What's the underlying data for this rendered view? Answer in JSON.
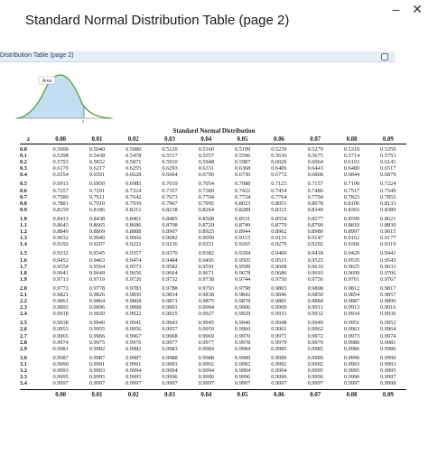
{
  "window": {
    "title": "Standard Normal Distribution Table (page 2)",
    "tab_label": "Distribution Table (page 2)",
    "minimize_glyph": "–",
    "close_glyph": "✕"
  },
  "curve": {
    "area_label": "Area",
    "z_label": "z"
  },
  "table": {
    "title": "Standard Normal Distribution",
    "z_header": "z",
    "columns": [
      "0.00",
      "0.01",
      "0.02",
      "0.03",
      "0.04",
      "0.05",
      "0.06",
      "0.07",
      "0.08",
      "0.09"
    ],
    "blocks": [
      {
        "rows": [
          {
            "z": "0.0",
            "v": [
              "0.5000",
              "0.5040",
              "0.5080",
              "0.5120",
              "0.5160",
              "0.5199",
              "0.5239",
              "0.5279",
              "0.5319",
              "0.5359"
            ]
          },
          {
            "z": "0.1",
            "v": [
              "0.5398",
              "0.5438",
              "0.5478",
              "0.5517",
              "0.5557",
              "0.5596",
              "0.5636",
              "0.5675",
              "0.5714",
              "0.5753"
            ]
          },
          {
            "z": "0.2",
            "v": [
              "0.5793",
              "0.5832",
              "0.5871",
              "0.5910",
              "0.5948",
              "0.5987",
              "0.6026",
              "0.6064",
              "0.6103",
              "0.6141"
            ]
          },
          {
            "z": "0.3",
            "v": [
              "0.6179",
              "0.6217",
              "0.6255",
              "0.6293",
              "0.6331",
              "0.6368",
              "0.6406",
              "0.6443",
              "0.6480",
              "0.6517"
            ]
          },
          {
            "z": "0.4",
            "v": [
              "0.6554",
              "0.6591",
              "0.6628",
              "0.6664",
              "0.6700",
              "0.6736",
              "0.6772",
              "0.6808",
              "0.6844",
              "0.6879"
            ]
          }
        ]
      },
      {
        "rows": [
          {
            "z": "0.5",
            "v": [
              "0.6915",
              "0.6950",
              "0.6985",
              "0.7019",
              "0.7054",
              "0.7088",
              "0.7123",
              "0.7157",
              "0.7190",
              "0.7224"
            ]
          },
          {
            "z": "0.6",
            "v": [
              "0.7257",
              "0.7291",
              "0.7324",
              "0.7357",
              "0.7389",
              "0.7422",
              "0.7454",
              "0.7486",
              "0.7517",
              "0.7549"
            ]
          },
          {
            "z": "0.7",
            "v": [
              "0.7580",
              "0.7611",
              "0.7642",
              "0.7673",
              "0.7704",
              "0.7734",
              "0.7764",
              "0.7794",
              "0.7823",
              "0.7852"
            ]
          },
          {
            "z": "0.8",
            "v": [
              "0.7881",
              "0.7910",
              "0.7939",
              "0.7967",
              "0.7995",
              "0.8023",
              "0.8051",
              "0.8078",
              "0.8106",
              "0.8133"
            ]
          },
          {
            "z": "0.9",
            "v": [
              "0.8159",
              "0.8186",
              "0.8212",
              "0.8238",
              "0.8264",
              "0.8289",
              "0.8315",
              "0.8340",
              "0.8365",
              "0.8389"
            ]
          }
        ]
      },
      {
        "rows": [
          {
            "z": "1.0",
            "v": [
              "0.8413",
              "0.8438",
              "0.8461",
              "0.8485",
              "0.8508",
              "0.8531",
              "0.8554",
              "0.8577",
              "0.8599",
              "0.8621"
            ]
          },
          {
            "z": "1.1",
            "v": [
              "0.8643",
              "0.8665",
              "0.8686",
              "0.8708",
              "0.8729",
              "0.8749",
              "0.8770",
              "0.8790",
              "0.8810",
              "0.8830"
            ]
          },
          {
            "z": "1.2",
            "v": [
              "0.8849",
              "0.8869",
              "0.8888",
              "0.8907",
              "0.8925",
              "0.8944",
              "0.8962",
              "0.8980",
              "0.8997",
              "0.9015"
            ]
          },
          {
            "z": "1.3",
            "v": [
              "0.9032",
              "0.9049",
              "0.9066",
              "0.9082",
              "0.9099",
              "0.9115",
              "0.9131",
              "0.9147",
              "0.9162",
              "0.9177"
            ]
          },
          {
            "z": "1.4",
            "v": [
              "0.9192",
              "0.9207",
              "0.9222",
              "0.9236",
              "0.9251",
              "0.9265",
              "0.9279",
              "0.9292",
              "0.9306",
              "0.9319"
            ]
          }
        ]
      },
      {
        "rows": [
          {
            "z": "1.5",
            "v": [
              "0.9332",
              "0.9345",
              "0.9357",
              "0.9370",
              "0.9382",
              "0.9394",
              "0.9406",
              "0.9418",
              "0.9429",
              "0.9441"
            ]
          },
          {
            "z": "1.6",
            "v": [
              "0.9452",
              "0.9463",
              "0.9474",
              "0.9484",
              "0.9495",
              "0.9505",
              "0.9515",
              "0.9525",
              "0.9535",
              "0.9545"
            ]
          },
          {
            "z": "1.7",
            "v": [
              "0.9554",
              "0.9564",
              "0.9573",
              "0.9582",
              "0.9591",
              "0.9599",
              "0.9608",
              "0.9616",
              "0.9625",
              "0.9633"
            ]
          },
          {
            "z": "1.8",
            "v": [
              "0.9641",
              "0.9649",
              "0.9656",
              "0.9664",
              "0.9671",
              "0.9678",
              "0.9686",
              "0.9693",
              "0.9699",
              "0.9706"
            ]
          },
          {
            "z": "1.9",
            "v": [
              "0.9713",
              "0.9719",
              "0.9726",
              "0.9732",
              "0.9738",
              "0.9744",
              "0.9750",
              "0.9756",
              "0.9761",
              "0.9767"
            ]
          }
        ]
      },
      {
        "rows": [
          {
            "z": "2.0",
            "v": [
              "0.9772",
              "0.9778",
              "0.9783",
              "0.9788",
              "0.9793",
              "0.9798",
              "0.9803",
              "0.9808",
              "0.9812",
              "0.9817"
            ]
          },
          {
            "z": "2.1",
            "v": [
              "0.9821",
              "0.9826",
              "0.9830",
              "0.9834",
              "0.9838",
              "0.9842",
              "0.9846",
              "0.9850",
              "0.9854",
              "0.9857"
            ]
          },
          {
            "z": "2.2",
            "v": [
              "0.9861",
              "0.9864",
              "0.9868",
              "0.9871",
              "0.9875",
              "0.9878",
              "0.9881",
              "0.9884",
              "0.9887",
              "0.9890"
            ]
          },
          {
            "z": "2.3",
            "v": [
              "0.9893",
              "0.9896",
              "0.9898",
              "0.9901",
              "0.9904",
              "0.9906",
              "0.9909",
              "0.9911",
              "0.9913",
              "0.9916"
            ]
          },
          {
            "z": "2.4",
            "v": [
              "0.9918",
              "0.9920",
              "0.9922",
              "0.9925",
              "0.9927",
              "0.9929",
              "0.9931",
              "0.9932",
              "0.9934",
              "0.9936"
            ]
          }
        ]
      },
      {
        "rows": [
          {
            "z": "2.5",
            "v": [
              "0.9938",
              "0.9940",
              "0.9941",
              "0.9943",
              "0.9945",
              "0.9946",
              "0.9948",
              "0.9949",
              "0.9951",
              "0.9952"
            ]
          },
          {
            "z": "2.6",
            "v": [
              "0.9953",
              "0.9955",
              "0.9956",
              "0.9957",
              "0.9959",
              "0.9960",
              "0.9961",
              "0.9962",
              "0.9963",
              "0.9964"
            ]
          },
          {
            "z": "2.7",
            "v": [
              "0.9965",
              "0.9966",
              "0.9967",
              "0.9968",
              "0.9969",
              "0.9970",
              "0.9971",
              "0.9972",
              "0.9973",
              "0.9974"
            ]
          },
          {
            "z": "2.8",
            "v": [
              "0.9974",
              "0.9975",
              "0.9976",
              "0.9977",
              "0.9977",
              "0.9978",
              "0.9979",
              "0.9979",
              "0.9980",
              "0.9981"
            ]
          },
          {
            "z": "2.9",
            "v": [
              "0.9981",
              "0.9982",
              "0.9982",
              "0.9983",
              "0.9984",
              "0.9984",
              "0.9985",
              "0.9985",
              "0.9986",
              "0.9986"
            ]
          }
        ]
      },
      {
        "rows": [
          {
            "z": "3.0",
            "v": [
              "0.9987",
              "0.9987",
              "0.9987",
              "0.9988",
              "0.9988",
              "0.9989",
              "0.9989",
              "0.9989",
              "0.9990",
              "0.9990"
            ]
          },
          {
            "z": "3.1",
            "v": [
              "0.9990",
              "0.9991",
              "0.9991",
              "0.9991",
              "0.9992",
              "0.9992",
              "0.9992",
              "0.9992",
              "0.9993",
              "0.9993"
            ]
          },
          {
            "z": "3.2",
            "v": [
              "0.9993",
              "0.9993",
              "0.9994",
              "0.9994",
              "0.9994",
              "0.9994",
              "0.9994",
              "0.9995",
              "0.9995",
              "0.9995"
            ]
          },
          {
            "z": "3.3",
            "v": [
              "0.9995",
              "0.9995",
              "0.9995",
              "0.9996",
              "0.9996",
              "0.9996",
              "0.9996",
              "0.9996",
              "0.9996",
              "0.9997"
            ]
          },
          {
            "z": "3.4",
            "v": [
              "0.9997",
              "0.9997",
              "0.9997",
              "0.9997",
              "0.9997",
              "0.9997",
              "0.9997",
              "0.9997",
              "0.9997",
              "0.9998"
            ]
          }
        ]
      }
    ]
  }
}
